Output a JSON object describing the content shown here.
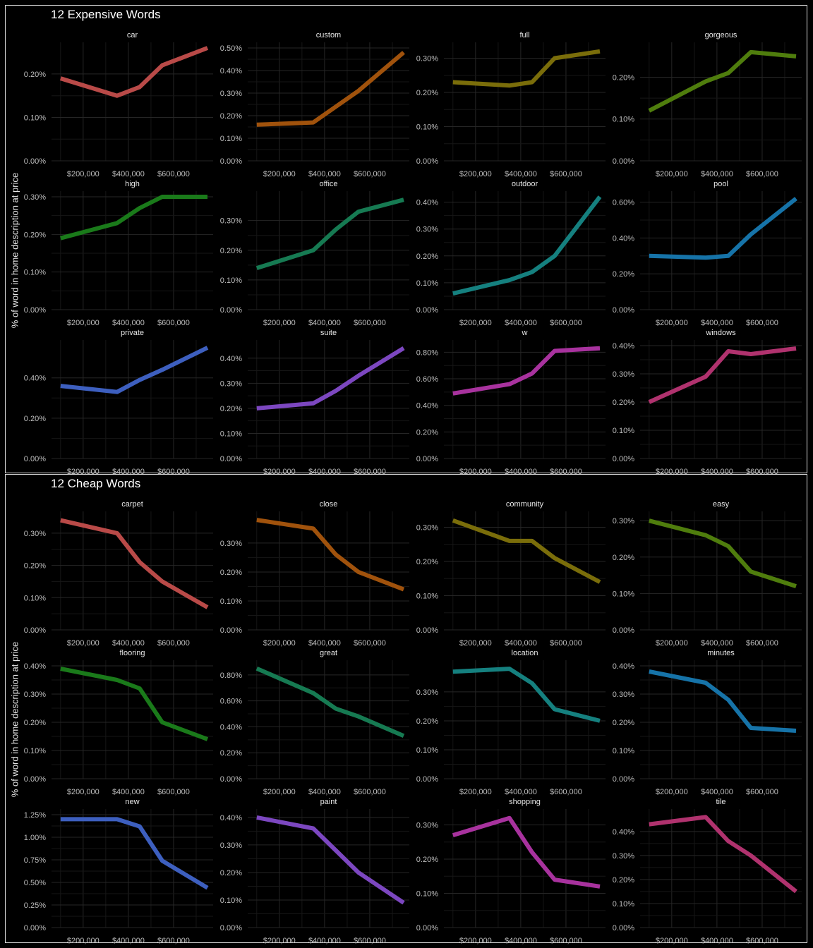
{
  "blocks": {
    "expensive": {
      "title": "12 Expensive Words",
      "ylabel": "% of word in home description at price"
    },
    "cheap": {
      "title": "12 Cheap Words",
      "ylabel": "% of word in home description at price"
    }
  },
  "colors": [
    "#b94a48",
    "#a0520c",
    "#7a6d0a",
    "#4f7d0d",
    "#1a7a1a",
    "#167a52",
    "#15807f",
    "#1673a8",
    "#3d5fbf",
    "#7c47c0",
    "#a8329e",
    "#b0326e"
  ],
  "chart_data": [
    {
      "type": "line",
      "group": "12 Expensive Words",
      "xlabel": "",
      "ylabel": "% of word in home description at price",
      "x": [
        100000,
        350000,
        450000,
        550000,
        750000
      ],
      "x_ticks": [
        "$200,000",
        "$400,000",
        "$600,000"
      ],
      "series": [
        {
          "name": "car",
          "values": [
            0.19,
            0.15,
            0.17,
            0.22,
            0.26
          ],
          "y_ticks": [
            "0.00%",
            "0.10%",
            "0.20%"
          ],
          "ylim": [
            0,
            0.26
          ]
        },
        {
          "name": "custom",
          "values": [
            0.16,
            0.17,
            0.24,
            0.31,
            0.48
          ],
          "y_ticks": [
            "0.00%",
            "0.10%",
            "0.20%",
            "0.30%",
            "0.40%",
            "0.50%"
          ],
          "ylim": [
            0,
            0.5
          ]
        },
        {
          "name": "full",
          "values": [
            0.23,
            0.22,
            0.23,
            0.3,
            0.32
          ],
          "y_ticks": [
            "0.00%",
            "0.10%",
            "0.20%",
            "0.30%"
          ],
          "ylim": [
            0,
            0.33
          ]
        },
        {
          "name": "gorgeous",
          "values": [
            0.12,
            0.19,
            0.21,
            0.26,
            0.25
          ],
          "y_ticks": [
            "0.00%",
            "0.10%",
            "0.20%"
          ],
          "ylim": [
            0,
            0.27
          ]
        },
        {
          "name": "high",
          "values": [
            0.19,
            0.23,
            0.27,
            0.3,
            0.3
          ],
          "y_ticks": [
            "0.00%",
            "0.10%",
            "0.20%",
            "0.30%"
          ],
          "ylim": [
            0,
            0.3
          ]
        },
        {
          "name": "office",
          "values": [
            0.14,
            0.2,
            0.27,
            0.33,
            0.37
          ],
          "y_ticks": [
            "0.00%",
            "0.10%",
            "0.20%",
            "0.30%"
          ],
          "ylim": [
            0,
            0.38
          ]
        },
        {
          "name": "outdoor",
          "values": [
            0.06,
            0.11,
            0.14,
            0.2,
            0.42
          ],
          "y_ticks": [
            "0.00%",
            "0.10%",
            "0.20%",
            "0.30%",
            "0.40%"
          ],
          "ylim": [
            0,
            0.42
          ]
        },
        {
          "name": "pool",
          "values": [
            0.3,
            0.29,
            0.3,
            0.42,
            0.62
          ],
          "y_ticks": [
            "0.00%",
            "0.20%",
            "0.40%",
            "0.60%"
          ],
          "ylim": [
            0,
            0.63
          ]
        },
        {
          "name": "private",
          "values": [
            0.36,
            0.33,
            0.39,
            0.44,
            0.55
          ],
          "y_ticks": [
            "0.00%",
            "0.20%",
            "0.40%"
          ],
          "ylim": [
            0,
            0.56
          ]
        },
        {
          "name": "suite",
          "values": [
            0.2,
            0.22,
            0.27,
            0.33,
            0.44
          ],
          "y_ticks": [
            "0.00%",
            "0.10%",
            "0.20%",
            "0.30%",
            "0.40%"
          ],
          "ylim": [
            0,
            0.45
          ]
        },
        {
          "name": "w",
          "values": [
            0.49,
            0.56,
            0.64,
            0.81,
            0.83
          ],
          "y_ticks": [
            "0.00%",
            "0.20%",
            "0.40%",
            "0.60%",
            "0.80%"
          ],
          "ylim": [
            0,
            0.85
          ]
        },
        {
          "name": "windows",
          "values": [
            0.2,
            0.29,
            0.38,
            0.37,
            0.39
          ],
          "y_ticks": [
            "0.00%",
            "0.10%",
            "0.20%",
            "0.30%",
            "0.40%"
          ],
          "ylim": [
            0,
            0.4
          ]
        }
      ]
    },
    {
      "type": "line",
      "group": "12 Cheap Words",
      "xlabel": "",
      "ylabel": "% of word in home description at price",
      "x": [
        100000,
        350000,
        450000,
        550000,
        750000
      ],
      "x_ticks": [
        "$200,000",
        "$400,000",
        "$600,000"
      ],
      "series": [
        {
          "name": "carpet",
          "values": [
            0.34,
            0.3,
            0.21,
            0.15,
            0.07
          ],
          "y_ticks": [
            "0.00%",
            "0.10%",
            "0.20%",
            "0.30%"
          ],
          "ylim": [
            0,
            0.35
          ]
        },
        {
          "name": "close",
          "values": [
            0.38,
            0.35,
            0.26,
            0.2,
            0.14
          ],
          "y_ticks": [
            "0.00%",
            "0.10%",
            "0.20%",
            "0.30%"
          ],
          "ylim": [
            0,
            0.39
          ]
        },
        {
          "name": "community",
          "values": [
            0.32,
            0.26,
            0.26,
            0.21,
            0.14
          ],
          "y_ticks": [
            "0.00%",
            "0.10%",
            "0.20%",
            "0.30%"
          ],
          "ylim": [
            0,
            0.33
          ]
        },
        {
          "name": "easy",
          "values": [
            0.3,
            0.26,
            0.23,
            0.16,
            0.12
          ],
          "y_ticks": [
            "0.00%",
            "0.10%",
            "0.20%",
            "0.30%"
          ],
          "ylim": [
            0,
            0.31
          ]
        },
        {
          "name": "flooring",
          "values": [
            0.39,
            0.35,
            0.32,
            0.2,
            0.14
          ],
          "y_ticks": [
            "0.00%",
            "0.10%",
            "0.20%",
            "0.30%",
            "0.40%"
          ],
          "ylim": [
            0,
            0.4
          ]
        },
        {
          "name": "great",
          "values": [
            0.85,
            0.66,
            0.54,
            0.48,
            0.33
          ],
          "y_ticks": [
            "0.00%",
            "0.20%",
            "0.40%",
            "0.60%",
            "0.80%"
          ],
          "ylim": [
            0,
            0.87
          ]
        },
        {
          "name": "location",
          "values": [
            0.37,
            0.38,
            0.33,
            0.24,
            0.2
          ],
          "y_ticks": [
            "0.00%",
            "0.10%",
            "0.20%",
            "0.30%"
          ],
          "ylim": [
            0,
            0.39
          ]
        },
        {
          "name": "minutes",
          "values": [
            0.38,
            0.34,
            0.28,
            0.18,
            0.17
          ],
          "y_ticks": [
            "0.00%",
            "0.10%",
            "0.20%",
            "0.30%",
            "0.40%"
          ],
          "ylim": [
            0,
            0.4
          ]
        },
        {
          "name": "new",
          "values": [
            1.2,
            1.2,
            1.12,
            0.74,
            0.44
          ],
          "y_ticks": [
            "0.00%",
            "0.25%",
            "0.50%",
            "0.75%",
            "1.00%",
            "1.25%"
          ],
          "ylim": [
            0,
            1.25
          ]
        },
        {
          "name": "paint",
          "values": [
            0.4,
            0.36,
            0.28,
            0.2,
            0.09
          ],
          "y_ticks": [
            "0.00%",
            "0.10%",
            "0.20%",
            "0.30%",
            "0.40%"
          ],
          "ylim": [
            0,
            0.41
          ]
        },
        {
          "name": "shopping",
          "values": [
            0.27,
            0.32,
            0.22,
            0.14,
            0.12
          ],
          "y_ticks": [
            "0.00%",
            "0.10%",
            "0.20%",
            "0.30%"
          ],
          "ylim": [
            0,
            0.33
          ]
        },
        {
          "name": "tile",
          "values": [
            0.43,
            0.46,
            0.36,
            0.3,
            0.15
          ],
          "y_ticks": [
            "0.00%",
            "0.10%",
            "0.20%",
            "0.30%",
            "0.40%"
          ],
          "ylim": [
            0,
            0.47
          ]
        }
      ]
    }
  ]
}
